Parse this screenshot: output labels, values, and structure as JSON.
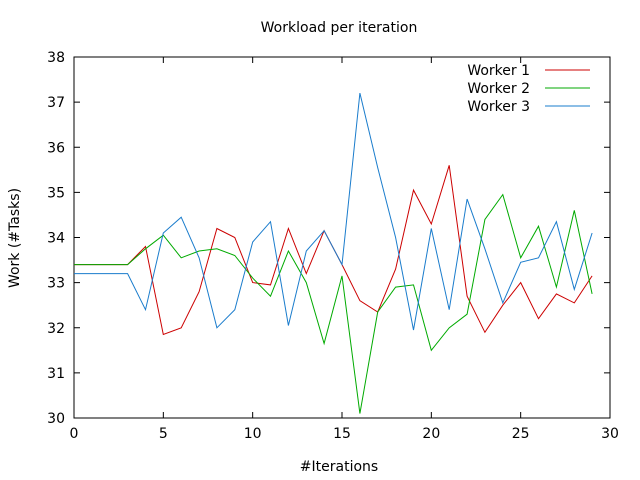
{
  "chart_data": {
    "type": "line",
    "title": "Workload per iteration",
    "xlabel": "#Iterations",
    "ylabel": "Work (#Tasks)",
    "xlim": [
      0,
      30
    ],
    "ylim": [
      30,
      38
    ],
    "xticks": [
      0,
      5,
      10,
      15,
      20,
      25,
      30
    ],
    "yticks": [
      30,
      31,
      32,
      33,
      34,
      35,
      36,
      37,
      38
    ],
    "grid": false,
    "legend_position": "top-right",
    "x": [
      0,
      1,
      2,
      3,
      4,
      5,
      6,
      7,
      8,
      9,
      10,
      11,
      12,
      13,
      14,
      15,
      16,
      17,
      18,
      19,
      20,
      21,
      22,
      23,
      24,
      25,
      26,
      27,
      28,
      29
    ],
    "series": [
      {
        "name": "Worker 1",
        "color": "#cc0000",
        "values": [
          33.4,
          33.4,
          33.4,
          33.4,
          33.8,
          31.85,
          32.0,
          32.8,
          34.2,
          34.0,
          33.0,
          32.95,
          34.2,
          33.2,
          34.15,
          33.4,
          32.6,
          32.35,
          33.3,
          35.05,
          34.3,
          35.6,
          32.7,
          31.9,
          32.5,
          33.0,
          32.2,
          32.75,
          32.55,
          33.15
        ]
      },
      {
        "name": "Worker 2",
        "color": "#00aa00",
        "values": [
          33.4,
          33.4,
          33.4,
          33.4,
          33.75,
          34.05,
          33.55,
          33.7,
          33.75,
          33.6,
          33.1,
          32.7,
          33.7,
          33.0,
          31.65,
          33.15,
          30.1,
          32.35,
          32.9,
          32.95,
          31.5,
          32.0,
          32.3,
          34.4,
          34.95,
          33.55,
          34.25,
          32.9,
          34.6,
          32.75
        ]
      },
      {
        "name": "Worker 3",
        "color": "#1a7ccc",
        "values": [
          33.2,
          33.2,
          33.2,
          33.2,
          32.4,
          34.1,
          34.45,
          33.55,
          32.0,
          32.4,
          33.9,
          34.35,
          32.05,
          33.7,
          34.15,
          33.4,
          37.2,
          35.55,
          34.0,
          31.95,
          34.2,
          32.4,
          34.85,
          33.75,
          32.55,
          33.45,
          33.55,
          34.35,
          32.85,
          34.1
        ]
      }
    ]
  }
}
